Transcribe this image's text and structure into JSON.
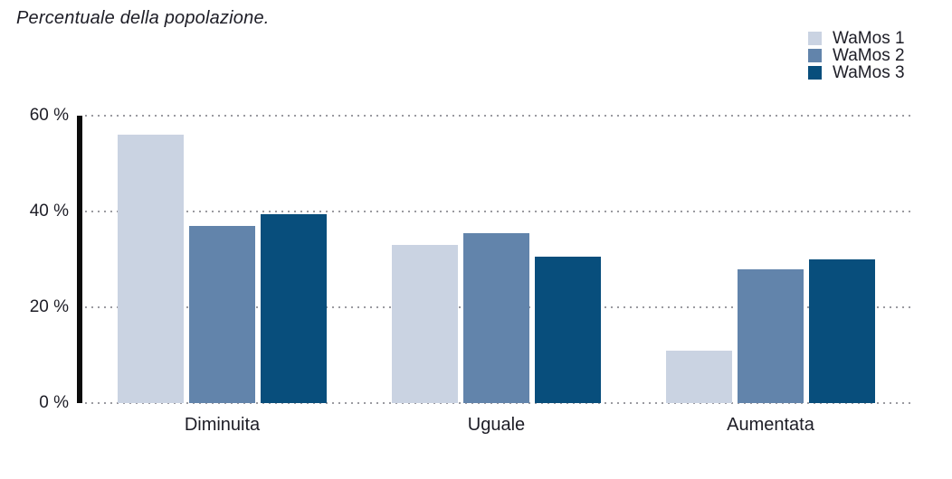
{
  "chart_data": {
    "type": "bar",
    "title": "Percentuale della popolazione.",
    "categories": [
      "Diminuita",
      "Uguale",
      "Aumentata"
    ],
    "series": [
      {
        "name": "WaMos 1",
        "color": "#cad3e2",
        "values": [
          56,
          33,
          11
        ]
      },
      {
        "name": "WaMos 2",
        "color": "#6284ab",
        "values": [
          37,
          35.5,
          28
        ]
      },
      {
        "name": "WaMos 3",
        "color": "#084e7c",
        "values": [
          39.5,
          30.5,
          30
        ]
      }
    ],
    "ylim": [
      0,
      60
    ],
    "yticks": [
      {
        "value": 60,
        "label": "60 %"
      },
      {
        "value": 40,
        "label": "40 %"
      },
      {
        "value": 20,
        "label": "20 %"
      },
      {
        "value": 0,
        "label": "0 %"
      }
    ],
    "grid": "horizontal-dotted",
    "legend_position": "top-right",
    "colors": {
      "axis": "#0b0b0b",
      "gridline": "#9a9aa0",
      "text": "#1d1d26"
    }
  }
}
